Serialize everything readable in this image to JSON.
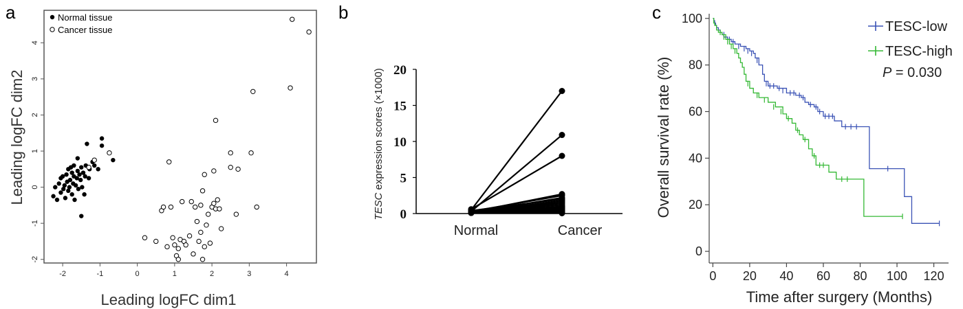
{
  "panels": {
    "a": {
      "letter": "a"
    },
    "b": {
      "letter": "b"
    },
    "c": {
      "letter": "c"
    }
  },
  "colors": {
    "tesc_low": "#3a52b5",
    "tesc_high": "#33b833",
    "black": "#000000"
  },
  "chart_data": [
    {
      "panel": "a",
      "type": "scatter",
      "title": "",
      "xlabel": "Leading logFC dim1",
      "ylabel": "Leading logFC dim2",
      "xlim": [
        -2.5,
        4.8
      ],
      "ylim": [
        -2.1,
        4.9
      ],
      "xticks": [
        -2,
        -1,
        0,
        1,
        2,
        3,
        4
      ],
      "yticks": [
        -2,
        -1,
        0,
        1,
        2,
        3,
        4
      ],
      "legend": "top-left",
      "series": [
        {
          "name": "Normal tissue",
          "marker": "filled-circle",
          "points": [
            [
              -2.25,
              -0.25
            ],
            [
              -2.2,
              0.0
            ],
            [
              -2.15,
              -0.35
            ],
            [
              -2.1,
              0.1
            ],
            [
              -2.05,
              -0.15
            ],
            [
              -2.05,
              0.25
            ],
            [
              -2.0,
              0.3
            ],
            [
              -1.98,
              -0.05
            ],
            [
              -1.95,
              0.05
            ],
            [
              -1.93,
              -0.3
            ],
            [
              -1.9,
              0.35
            ],
            [
              -1.88,
              0.15
            ],
            [
              -1.85,
              -0.1
            ],
            [
              -1.85,
              0.5
            ],
            [
              -1.82,
              0.0
            ],
            [
              -1.8,
              0.2
            ],
            [
              -1.78,
              0.55
            ],
            [
              -1.75,
              0.4
            ],
            [
              -1.75,
              -0.2
            ],
            [
              -1.72,
              0.1
            ],
            [
              -1.7,
              0.3
            ],
            [
              -1.7,
              0.6
            ],
            [
              -1.68,
              -0.35
            ],
            [
              -1.65,
              0.05
            ],
            [
              -1.62,
              0.25
            ],
            [
              -1.6,
              0.45
            ],
            [
              -1.6,
              0.8
            ],
            [
              -1.58,
              -0.05
            ],
            [
              -1.55,
              0.35
            ],
            [
              -1.52,
              0.2
            ],
            [
              -1.5,
              0.55
            ],
            [
              -1.5,
              -0.8
            ],
            [
              -1.48,
              0.0
            ],
            [
              -1.45,
              0.4
            ],
            [
              -1.42,
              -0.2
            ],
            [
              -1.4,
              0.3
            ],
            [
              -1.38,
              0.6
            ],
            [
              -1.35,
              1.2
            ],
            [
              -1.3,
              0.25
            ],
            [
              -1.28,
              0.5
            ],
            [
              -1.2,
              0.7
            ],
            [
              -1.15,
              0.6
            ],
            [
              -1.05,
              0.5
            ],
            [
              -0.95,
              1.15
            ],
            [
              -0.95,
              1.35
            ],
            [
              -0.65,
              0.75
            ]
          ]
        },
        {
          "name": "Cancer tissue",
          "marker": "open-circle",
          "points": [
            [
              -1.3,
              0.55
            ],
            [
              -1.15,
              0.75
            ],
            [
              -0.75,
              0.95
            ],
            [
              0.2,
              -1.4
            ],
            [
              0.5,
              -1.5
            ],
            [
              0.65,
              -0.65
            ],
            [
              0.7,
              -0.55
            ],
            [
              0.8,
              -1.65
            ],
            [
              0.85,
              0.7
            ],
            [
              0.9,
              -0.55
            ],
            [
              0.95,
              -1.4
            ],
            [
              1.0,
              -1.6
            ],
            [
              1.05,
              -1.9
            ],
            [
              1.1,
              -1.7
            ],
            [
              1.1,
              -2.0
            ],
            [
              1.15,
              -1.45
            ],
            [
              1.2,
              -0.4
            ],
            [
              1.25,
              -1.5
            ],
            [
              1.3,
              -1.6
            ],
            [
              1.4,
              -1.35
            ],
            [
              1.45,
              -0.4
            ],
            [
              1.5,
              -1.85
            ],
            [
              1.55,
              -0.55
            ],
            [
              1.6,
              -0.95
            ],
            [
              1.65,
              -1.5
            ],
            [
              1.7,
              -1.25
            ],
            [
              1.7,
              -0.5
            ],
            [
              1.75,
              -2.0
            ],
            [
              1.75,
              -0.1
            ],
            [
              1.8,
              -1.65
            ],
            [
              1.8,
              0.35
            ],
            [
              1.85,
              -1.05
            ],
            [
              1.9,
              -0.75
            ],
            [
              1.95,
              -1.55
            ],
            [
              2.0,
              -0.55
            ],
            [
              2.05,
              -0.45
            ],
            [
              2.05,
              0.45
            ],
            [
              2.1,
              -0.6
            ],
            [
              2.1,
              1.85
            ],
            [
              2.15,
              -0.35
            ],
            [
              2.2,
              -0.6
            ],
            [
              2.25,
              -1.15
            ],
            [
              2.5,
              0.95
            ],
            [
              2.5,
              0.55
            ],
            [
              2.65,
              -0.75
            ],
            [
              2.7,
              0.5
            ],
            [
              3.05,
              0.95
            ],
            [
              3.1,
              2.65
            ],
            [
              3.2,
              -0.55
            ],
            [
              4.1,
              2.75
            ],
            [
              4.15,
              4.65
            ],
            [
              4.6,
              4.3
            ]
          ]
        }
      ]
    },
    {
      "panel": "b",
      "type": "line",
      "title": "",
      "xlabel": "",
      "ylabel_italic": "TESC",
      "ylabel_rest": " expression scores (×1000)",
      "categories": [
        "Normal",
        "Cancer"
      ],
      "ylim": [
        0,
        20
      ],
      "yticks": [
        0,
        5,
        10,
        15,
        20
      ],
      "pairs": [
        [
          0.5,
          17.0
        ],
        [
          0.3,
          10.9
        ],
        [
          0.6,
          8.0
        ],
        [
          0.2,
          2.7
        ],
        [
          0.3,
          2.5
        ],
        [
          0.1,
          2.2
        ],
        [
          0.4,
          2.0
        ],
        [
          0.2,
          1.8
        ],
        [
          0.1,
          1.6
        ],
        [
          0.3,
          1.4
        ],
        [
          0.2,
          1.2
        ],
        [
          0.1,
          1.0
        ],
        [
          0.2,
          0.9
        ],
        [
          0.1,
          0.8
        ],
        [
          0.3,
          0.7
        ],
        [
          0.2,
          0.6
        ],
        [
          0.1,
          0.5
        ],
        [
          0.2,
          0.4
        ],
        [
          0.1,
          0.3
        ],
        [
          0.2,
          0.2
        ],
        [
          0.1,
          0.1
        ],
        [
          0.4,
          0.05
        ]
      ]
    },
    {
      "panel": "c",
      "type": "line",
      "subtype": "kaplan-meier",
      "title": "",
      "xlabel": "Time after surgery (Months)",
      "ylabel": "Overall survival rate (%)",
      "xlim": [
        -2,
        128
      ],
      "ylim": [
        -5,
        102
      ],
      "xticks": [
        0,
        20,
        40,
        60,
        80,
        100,
        120
      ],
      "yticks": [
        0,
        20,
        40,
        60,
        80,
        100
      ],
      "legend": "top-right",
      "annotation_p_label": "P",
      "annotation_p_value": " = 0.030",
      "series": [
        {
          "name": "TESC-low",
          "color": "#3a52b5",
          "steps": [
            [
              0,
              100
            ],
            [
              0.5,
              99
            ],
            [
              1,
              98
            ],
            [
              1.5,
              97
            ],
            [
              2,
              96
            ],
            [
              3,
              95
            ],
            [
              4,
              94
            ],
            [
              5,
              93
            ],
            [
              6,
              92
            ],
            [
              8,
              91
            ],
            [
              10,
              90
            ],
            [
              12,
              89
            ],
            [
              15,
              88
            ],
            [
              18,
              87
            ],
            [
              20,
              86
            ],
            [
              22,
              85
            ],
            [
              23,
              83
            ],
            [
              25,
              80
            ],
            [
              27,
              76
            ],
            [
              28,
              73
            ],
            [
              30,
              71
            ],
            [
              35,
              70
            ],
            [
              40,
              68
            ],
            [
              45,
              67
            ],
            [
              48,
              66
            ],
            [
              50,
              64
            ],
            [
              52,
              63
            ],
            [
              55,
              62
            ],
            [
              57,
              60
            ],
            [
              60,
              58
            ],
            [
              66,
              56
            ],
            [
              70,
              53.5
            ],
            [
              78,
              53.5
            ],
            [
              85,
              35.5
            ],
            [
              96,
              35.5
            ],
            [
              104,
              23.5
            ],
            [
              108,
              12
            ],
            [
              123,
              12
            ]
          ],
          "censor": [
            [
              6,
              93
            ],
            [
              9,
              91
            ],
            [
              11,
              90
            ],
            [
              14,
              88
            ],
            [
              17,
              87
            ],
            [
              19,
              86
            ],
            [
              21,
              85
            ],
            [
              24,
              82
            ],
            [
              29,
              72
            ],
            [
              31,
              71
            ],
            [
              33,
              71
            ],
            [
              36,
              70
            ],
            [
              38,
              69
            ],
            [
              42,
              68
            ],
            [
              44,
              68
            ],
            [
              47,
              67
            ],
            [
              49,
              66
            ],
            [
              53,
              63
            ],
            [
              56,
              62
            ],
            [
              58,
              60
            ],
            [
              61,
              58
            ],
            [
              63,
              58
            ],
            [
              65,
              58
            ],
            [
              72,
              53.5
            ],
            [
              75,
              53.5
            ],
            [
              78,
              53.5
            ],
            [
              95,
              35.5
            ],
            [
              123,
              12
            ]
          ]
        },
        {
          "name": "TESC-high",
          "color": "#33b833",
          "steps": [
            [
              0,
              100
            ],
            [
              0.5,
              98
            ],
            [
              1,
              97
            ],
            [
              2,
              95
            ],
            [
              3,
              94
            ],
            [
              5,
              93
            ],
            [
              7,
              91
            ],
            [
              9,
              89
            ],
            [
              11,
              87
            ],
            [
              13,
              85
            ],
            [
              14,
              83
            ],
            [
              15,
              81
            ],
            [
              16,
              79
            ],
            [
              17,
              76
            ],
            [
              18,
              73
            ],
            [
              20,
              70
            ],
            [
              22,
              68
            ],
            [
              25,
              66
            ],
            [
              30,
              64
            ],
            [
              34,
              62
            ],
            [
              38,
              59
            ],
            [
              40,
              57
            ],
            [
              43,
              55
            ],
            [
              45,
              52
            ],
            [
              47,
              50
            ],
            [
              49,
              48
            ],
            [
              52,
              44
            ],
            [
              54,
              41
            ],
            [
              56,
              37
            ],
            [
              60,
              37
            ],
            [
              63,
              34
            ],
            [
              67,
              31
            ],
            [
              75,
              31
            ],
            [
              82,
              15
            ],
            [
              103,
              15
            ]
          ],
          "censor": [
            [
              4,
              94
            ],
            [
              6,
              92
            ],
            [
              8,
              90
            ],
            [
              10,
              88
            ],
            [
              12,
              86
            ],
            [
              19,
              72
            ],
            [
              24,
              67
            ],
            [
              28,
              65
            ],
            [
              33,
              62
            ],
            [
              37,
              60
            ],
            [
              41,
              57
            ],
            [
              46,
              52
            ],
            [
              50,
              48
            ],
            [
              55,
              41
            ],
            [
              58,
              37
            ],
            [
              60,
              37
            ],
            [
              70,
              31
            ],
            [
              73,
              31
            ],
            [
              103,
              15
            ]
          ]
        }
      ]
    }
  ]
}
